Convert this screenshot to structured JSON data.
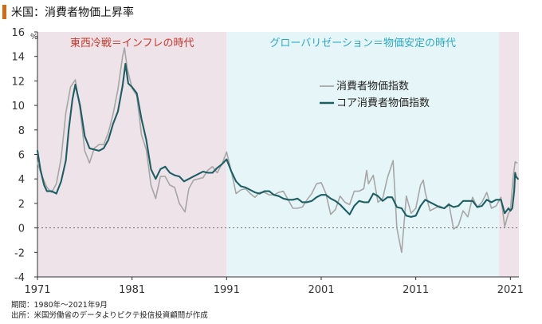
{
  "chart_data": {
    "type": "line",
    "title": "米国：消費者物価上昇率",
    "ylabel": "%",
    "xlabel": "",
    "xlim": [
      1971,
      2021.9
    ],
    "ylim": [
      -4,
      16
    ],
    "y_ticks": [
      -4,
      -2,
      0,
      2,
      4,
      6,
      8,
      10,
      12,
      14,
      16
    ],
    "x_ticks": [
      1971,
      1981,
      1991,
      2001,
      2011,
      2021
    ],
    "grid": false,
    "legend_position": "upper-right",
    "period_bands": [
      {
        "label": "東西冷戦＝インフレの時代",
        "start": 1971,
        "end": 1991,
        "fill": "#eee3e8",
        "text_color": "#c8372d"
      },
      {
        "label": "グローバリゼーション＝物価安定の時代",
        "start": 1991,
        "end": 2019.8,
        "fill": "#e6f6f8",
        "text_color": "#2aa9c9"
      },
      {
        "label": "",
        "start": 2019.8,
        "end": 2021.9,
        "fill": "#eee3e8",
        "text_color": "#c8372d"
      }
    ],
    "series": [
      {
        "name": "消費者物価指数",
        "color": "#a6a6a6",
        "points": [
          [
            1971,
            5.3
          ],
          [
            1971.5,
            4.2
          ],
          [
            1972,
            3.3
          ],
          [
            1972.5,
            2.9
          ],
          [
            1973,
            3.6
          ],
          [
            1973.5,
            5.7
          ],
          [
            1974,
            9.4
          ],
          [
            1974.5,
            11.5
          ],
          [
            1975,
            12.1
          ],
          [
            1975.5,
            9.7
          ],
          [
            1976,
            6.3
          ],
          [
            1976.5,
            5.3
          ],
          [
            1977,
            6.5
          ],
          [
            1977.5,
            6.8
          ],
          [
            1978,
            6.8
          ],
          [
            1978.5,
            7.8
          ],
          [
            1979,
            9.3
          ],
          [
            1979.5,
            11.3
          ],
          [
            1980,
            14.0
          ],
          [
            1980.2,
            14.7
          ],
          [
            1980.5,
            13.0
          ],
          [
            1981,
            11.4
          ],
          [
            1981.5,
            10.8
          ],
          [
            1982,
            7.6
          ],
          [
            1982.5,
            6.4
          ],
          [
            1983,
            3.5
          ],
          [
            1983.5,
            2.4
          ],
          [
            1984,
            4.2
          ],
          [
            1984.5,
            4.2
          ],
          [
            1985,
            3.5
          ],
          [
            1985.5,
            3.3
          ],
          [
            1986,
            2.0
          ],
          [
            1986.6,
            1.3
          ],
          [
            1987,
            3.2
          ],
          [
            1987.5,
            3.9
          ],
          [
            1988,
            4.0
          ],
          [
            1988.5,
            4.1
          ],
          [
            1989,
            4.7
          ],
          [
            1989.5,
            5.0
          ],
          [
            1990,
            4.5
          ],
          [
            1990.5,
            5.2
          ],
          [
            1991,
            6.2
          ],
          [
            1991.5,
            4.6
          ],
          [
            1992,
            2.8
          ],
          [
            1992.5,
            3.1
          ],
          [
            1993,
            3.2
          ],
          [
            1993.5,
            2.8
          ],
          [
            1994,
            2.5
          ],
          [
            1994.5,
            2.9
          ],
          [
            1995,
            2.9
          ],
          [
            1995.5,
            2.7
          ],
          [
            1996,
            2.7
          ],
          [
            1996.5,
            2.9
          ],
          [
            1997,
            3.0
          ],
          [
            1997.5,
            2.3
          ],
          [
            1998,
            1.6
          ],
          [
            1998.5,
            1.6
          ],
          [
            1999,
            1.7
          ],
          [
            1999.5,
            2.3
          ],
          [
            2000,
            2.8
          ],
          [
            2000.5,
            3.6
          ],
          [
            2001,
            3.7
          ],
          [
            2001.5,
            2.8
          ],
          [
            2002,
            1.1
          ],
          [
            2002.5,
            1.5
          ],
          [
            2003,
            2.6
          ],
          [
            2003.5,
            2.1
          ],
          [
            2004,
            1.9
          ],
          [
            2004.5,
            3.0
          ],
          [
            2005,
            3.0
          ],
          [
            2005.5,
            3.2
          ],
          [
            2005.8,
            4.7
          ],
          [
            2006,
            3.6
          ],
          [
            2006.5,
            4.3
          ],
          [
            2007,
            2.1
          ],
          [
            2007.5,
            2.4
          ],
          [
            2008,
            4.1
          ],
          [
            2008.6,
            5.5
          ],
          [
            2009,
            0.0
          ],
          [
            2009.5,
            -2.0
          ],
          [
            2010,
            2.6
          ],
          [
            2010.5,
            1.2
          ],
          [
            2011,
            1.6
          ],
          [
            2011.5,
            3.5
          ],
          [
            2011.8,
            3.9
          ],
          [
            2012,
            2.9
          ],
          [
            2012.5,
            1.4
          ],
          [
            2013,
            1.6
          ],
          [
            2013.5,
            1.8
          ],
          [
            2014,
            1.6
          ],
          [
            2014.5,
            2.0
          ],
          [
            2015,
            -0.1
          ],
          [
            2015.5,
            0.2
          ],
          [
            2016,
            1.4
          ],
          [
            2016.5,
            0.9
          ],
          [
            2017,
            2.5
          ],
          [
            2017.5,
            1.7
          ],
          [
            2018,
            2.1
          ],
          [
            2018.5,
            2.9
          ],
          [
            2019,
            1.6
          ],
          [
            2019.5,
            1.8
          ],
          [
            2020,
            2.5
          ],
          [
            2020.4,
            0.1
          ],
          [
            2020.8,
            1.2
          ],
          [
            2021,
            1.4
          ],
          [
            2021.3,
            4.2
          ],
          [
            2021.5,
            5.4
          ],
          [
            2021.7,
            5.3
          ]
        ]
      },
      {
        "name": "コア消費者物価指数",
        "color": "#1c5e62",
        "points": [
          [
            1971,
            6.3
          ],
          [
            1971.3,
            4.8
          ],
          [
            1971.7,
            3.5
          ],
          [
            1972,
            3.0
          ],
          [
            1972.5,
            3.0
          ],
          [
            1973,
            2.8
          ],
          [
            1973.5,
            3.8
          ],
          [
            1974,
            5.5
          ],
          [
            1974.3,
            8.0
          ],
          [
            1974.7,
            10.5
          ],
          [
            1975,
            11.7
          ],
          [
            1975.5,
            10.0
          ],
          [
            1976,
            7.5
          ],
          [
            1976.5,
            6.5
          ],
          [
            1977,
            6.4
          ],
          [
            1977.5,
            6.3
          ],
          [
            1978,
            6.5
          ],
          [
            1978.5,
            7.2
          ],
          [
            1979,
            8.5
          ],
          [
            1979.5,
            9.5
          ],
          [
            1980,
            11.6
          ],
          [
            1980.3,
            13.4
          ],
          [
            1980.6,
            11.8
          ],
          [
            1981,
            11.5
          ],
          [
            1981.5,
            11.0
          ],
          [
            1982,
            8.9
          ],
          [
            1982.5,
            7.2
          ],
          [
            1983,
            4.8
          ],
          [
            1983.5,
            4.0
          ],
          [
            1984,
            4.8
          ],
          [
            1984.5,
            5.0
          ],
          [
            1985,
            4.5
          ],
          [
            1985.5,
            4.3
          ],
          [
            1986,
            4.2
          ],
          [
            1986.5,
            3.8
          ],
          [
            1987,
            4.0
          ],
          [
            1987.5,
            4.2
          ],
          [
            1988,
            4.4
          ],
          [
            1988.5,
            4.6
          ],
          [
            1989,
            4.5
          ],
          [
            1989.5,
            4.5
          ],
          [
            1990,
            4.9
          ],
          [
            1990.5,
            5.2
          ],
          [
            1991,
            5.6
          ],
          [
            1991.5,
            4.6
          ],
          [
            1992,
            3.8
          ],
          [
            1992.5,
            3.4
          ],
          [
            1993,
            3.3
          ],
          [
            1993.5,
            3.1
          ],
          [
            1994,
            2.9
          ],
          [
            1994.5,
            2.8
          ],
          [
            1995,
            3.0
          ],
          [
            1995.5,
            3.0
          ],
          [
            1996,
            2.7
          ],
          [
            1996.5,
            2.6
          ],
          [
            1997,
            2.4
          ],
          [
            1997.5,
            2.3
          ],
          [
            1998,
            2.3
          ],
          [
            1998.5,
            2.4
          ],
          [
            1999,
            2.1
          ],
          [
            1999.5,
            2.1
          ],
          [
            2000,
            2.2
          ],
          [
            2000.5,
            2.5
          ],
          [
            2001,
            2.7
          ],
          [
            2001.5,
            2.7
          ],
          [
            2002,
            2.4
          ],
          [
            2002.5,
            2.2
          ],
          [
            2003,
            1.9
          ],
          [
            2003.5,
            1.5
          ],
          [
            2004,
            1.1
          ],
          [
            2004.5,
            1.8
          ],
          [
            2005,
            2.2
          ],
          [
            2005.5,
            2.1
          ],
          [
            2006,
            2.1
          ],
          [
            2006.5,
            2.8
          ],
          [
            2007,
            2.6
          ],
          [
            2007.5,
            2.2
          ],
          [
            2008,
            2.5
          ],
          [
            2008.5,
            2.5
          ],
          [
            2009,
            1.7
          ],
          [
            2009.5,
            1.6
          ],
          [
            2010,
            1.0
          ],
          [
            2010.5,
            0.9
          ],
          [
            2011,
            1.0
          ],
          [
            2011.5,
            1.8
          ],
          [
            2012,
            2.3
          ],
          [
            2012.5,
            2.1
          ],
          [
            2013,
            1.9
          ],
          [
            2013.5,
            1.7
          ],
          [
            2014,
            1.6
          ],
          [
            2014.5,
            1.9
          ],
          [
            2015,
            1.7
          ],
          [
            2015.5,
            1.8
          ],
          [
            2016,
            2.2
          ],
          [
            2016.5,
            2.2
          ],
          [
            2017,
            2.2
          ],
          [
            2017.5,
            1.7
          ],
          [
            2018,
            1.8
          ],
          [
            2018.5,
            2.3
          ],
          [
            2019,
            2.1
          ],
          [
            2019.5,
            2.3
          ],
          [
            2020,
            2.3
          ],
          [
            2020.4,
            1.2
          ],
          [
            2020.8,
            1.6
          ],
          [
            2021,
            1.4
          ],
          [
            2021.2,
            1.6
          ],
          [
            2021.4,
            3.0
          ],
          [
            2021.5,
            4.5
          ],
          [
            2021.6,
            4.2
          ],
          [
            2021.8,
            4.0
          ]
        ]
      }
    ]
  },
  "footer": {
    "period": "期間：1980年～2021年9月",
    "source": "出所：米国労働省のデータよりピクテ投信投資顧問が作成"
  }
}
